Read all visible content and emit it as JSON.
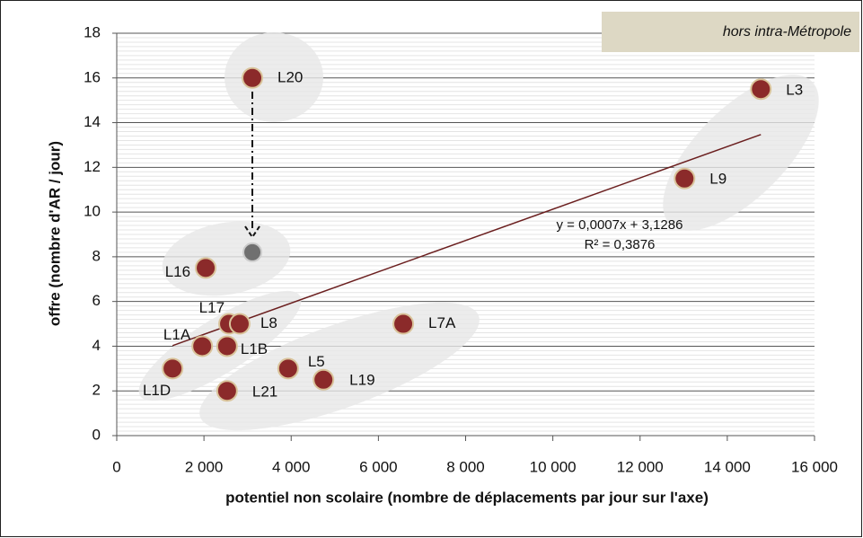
{
  "chart_data": {
    "type": "scatter",
    "annotation": "hors intra-Métropole",
    "xlabel": "potentiel non scolaire (nombre de déplacements par jour sur l'axe)",
    "ylabel": "offre (nombre d'AR / jour)",
    "color": "#8b2a2a",
    "points": [
      {
        "label": "L20",
        "x": 3110,
        "y": 16
      },
      {
        "label": "L3",
        "x": 14770,
        "y": 15.5
      },
      {
        "label": "L9",
        "x": 13020,
        "y": 11.5
      },
      {
        "label": "L16",
        "x": 2040,
        "y": 7.5
      },
      {
        "label": "L17",
        "x": 2575,
        "y": 5
      },
      {
        "label": "L8",
        "x": 2820,
        "y": 5
      },
      {
        "label": "L7A",
        "x": 6570,
        "y": 5
      },
      {
        "label": "L1A",
        "x": 1960,
        "y": 4
      },
      {
        "label": "L1B",
        "x": 2530,
        "y": 4
      },
      {
        "label": "L1D",
        "x": 1280,
        "y": 3
      },
      {
        "label": "L5",
        "x": 3930,
        "y": 3
      },
      {
        "label": "L19",
        "x": 4740,
        "y": 2.5
      },
      {
        "label": "L21",
        "x": 2530,
        "y": 2
      }
    ],
    "extra_point": {
      "x": 3110,
      "y": 8.2,
      "color": "#707070"
    },
    "trendline": {
      "equation": "y = 0,0007x + 3,1286",
      "r2": "R² = 0,3876",
      "slope": 0.0007,
      "intercept": 3.1286,
      "color": "#6b1f1f"
    },
    "xlim": [
      0,
      16000
    ],
    "xticks": [
      0,
      {
        "value": 2000,
        "label": "2 000"
      },
      {
        "value": 4000,
        "label": "4 000"
      },
      {
        "value": 6000,
        "label": "6 000"
      },
      {
        "value": 8000,
        "label": "8 000"
      },
      {
        "value": 10000,
        "label": "10 000"
      },
      {
        "value": 12000,
        "label": "12 000"
      },
      {
        "value": 14000,
        "label": "14 000"
      },
      {
        "value": 16000,
        "label": "16 000"
      }
    ],
    "ylim": [
      0,
      18
    ],
    "yticks": [
      0,
      2,
      4,
      6,
      8,
      10,
      12,
      14,
      16,
      18
    ],
    "grid": true
  }
}
